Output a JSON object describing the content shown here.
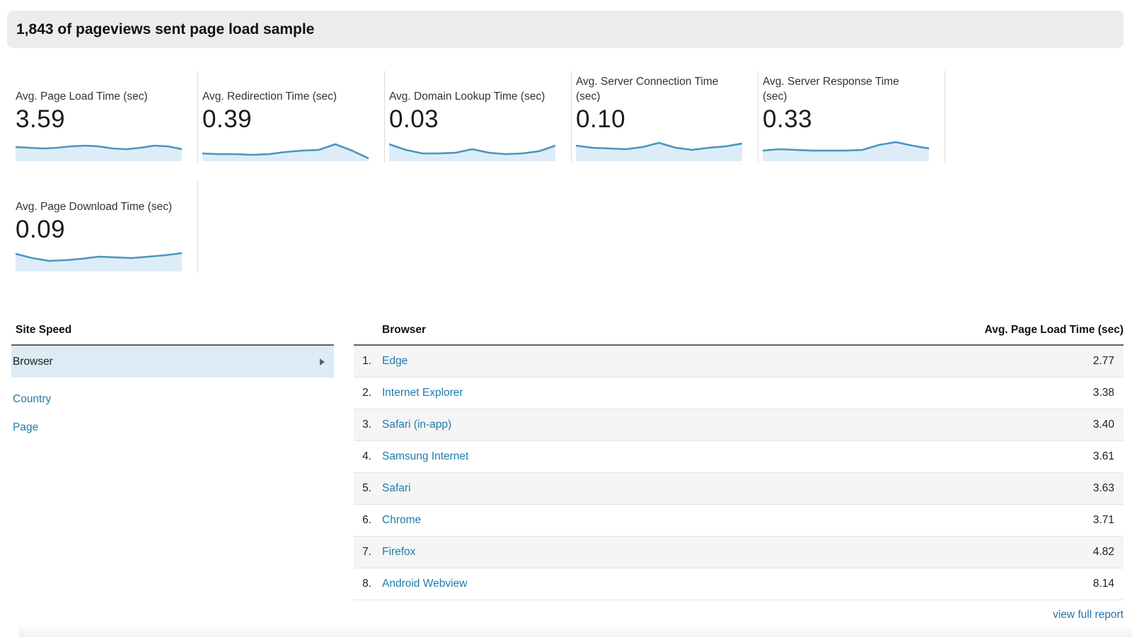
{
  "header": {
    "title": "1,843 of pageviews sent page load sample"
  },
  "colors": {
    "spark_line": "#4a96be",
    "spark_fill": "#ddedf8",
    "link": "#1e7cab",
    "footer_link": "#2b71a9",
    "selected_row_bg": "#dcebf5",
    "alt_row_bg": "#f5f5f5",
    "title_bar_bg": "#ececec"
  },
  "cards": [
    {
      "title": "Avg. Page Load Time (sec)",
      "value": "3.59",
      "spark": [
        12,
        13,
        14,
        13,
        11,
        10,
        11,
        14,
        15,
        13,
        10,
        11,
        15
      ]
    },
    {
      "title": "Avg. Redirection Time (sec)",
      "value": "0.39",
      "spark": [
        21,
        22,
        22,
        23,
        22,
        19,
        17,
        16,
        8,
        17,
        28
      ]
    },
    {
      "title": "Avg. Domain Lookup Time (sec)",
      "value": "0.03",
      "spark": [
        8,
        16,
        21,
        21,
        20,
        15,
        20,
        22,
        21,
        18,
        10
      ]
    },
    {
      "title": "Avg. Server Connection Time (sec)",
      "value": "0.10",
      "spark": [
        10,
        13,
        14,
        15,
        12,
        6,
        13,
        16,
        13,
        11,
        7
      ]
    },
    {
      "title": "Avg. Server Response Time (sec)",
      "value": "0.33",
      "spark": [
        17,
        15,
        16,
        17,
        17,
        17,
        16,
        9,
        5,
        10,
        14
      ]
    },
    {
      "title": "Avg. Page Download Time (sec)",
      "value": "0.09",
      "spark": [
        7,
        13,
        17,
        16,
        14,
        11,
        12,
        13,
        11,
        9,
        6
      ]
    }
  ],
  "sidebar": {
    "title": "Site Speed",
    "selected_item": "Browser",
    "links": [
      {
        "label": "Country"
      },
      {
        "label": "Page"
      }
    ]
  },
  "table": {
    "col_dimension": "Browser",
    "col_metric": "Avg. Page Load Time (sec)",
    "rows": [
      {
        "rank": "1.",
        "label": "Edge",
        "value": "2.77"
      },
      {
        "rank": "2.",
        "label": "Internet Explorer",
        "value": "3.38"
      },
      {
        "rank": "3.",
        "label": "Safari (in-app)",
        "value": "3.40"
      },
      {
        "rank": "4.",
        "label": "Samsung Internet",
        "value": "3.61"
      },
      {
        "rank": "5.",
        "label": "Safari",
        "value": "3.63"
      },
      {
        "rank": "6.",
        "label": "Chrome",
        "value": "3.71"
      },
      {
        "rank": "7.",
        "label": "Firefox",
        "value": "4.82"
      },
      {
        "rank": "8.",
        "label": "Android Webview",
        "value": "8.14"
      }
    ],
    "footer_link": "view full report"
  },
  "chart_data": [
    {
      "type": "line",
      "title": "Avg. Page Load Time (sec) sparkline",
      "summary_value": 3.59,
      "y_normalized": [
        12,
        13,
        14,
        13,
        11,
        10,
        11,
        14,
        15,
        13,
        10,
        11,
        15
      ]
    },
    {
      "type": "line",
      "title": "Avg. Redirection Time (sec) sparkline",
      "summary_value": 0.39,
      "y_normalized": [
        21,
        22,
        22,
        23,
        22,
        19,
        17,
        16,
        8,
        17,
        28
      ]
    },
    {
      "type": "line",
      "title": "Avg. Domain Lookup Time (sec) sparkline",
      "summary_value": 0.03,
      "y_normalized": [
        8,
        16,
        21,
        21,
        20,
        15,
        20,
        22,
        21,
        18,
        10
      ]
    },
    {
      "type": "line",
      "title": "Avg. Server Connection Time (sec) sparkline",
      "summary_value": 0.1,
      "y_normalized": [
        10,
        13,
        14,
        15,
        12,
        6,
        13,
        16,
        13,
        11,
        7
      ]
    },
    {
      "type": "line",
      "title": "Avg. Server Response Time (sec) sparkline",
      "summary_value": 0.33,
      "y_normalized": [
        17,
        15,
        16,
        17,
        17,
        17,
        16,
        9,
        5,
        10,
        14
      ]
    },
    {
      "type": "line",
      "title": "Avg. Page Download Time (sec) sparkline",
      "summary_value": 0.09,
      "y_normalized": [
        7,
        13,
        17,
        16,
        14,
        11,
        12,
        13,
        11,
        9,
        6
      ]
    },
    {
      "type": "table",
      "title": "Avg. Page Load Time by Browser",
      "categories": [
        "Edge",
        "Internet Explorer",
        "Safari (in-app)",
        "Samsung Internet",
        "Safari",
        "Chrome",
        "Firefox",
        "Android Webview"
      ],
      "values": [
        2.77,
        3.38,
        3.4,
        3.61,
        3.63,
        3.71,
        4.82,
        8.14
      ]
    }
  ]
}
